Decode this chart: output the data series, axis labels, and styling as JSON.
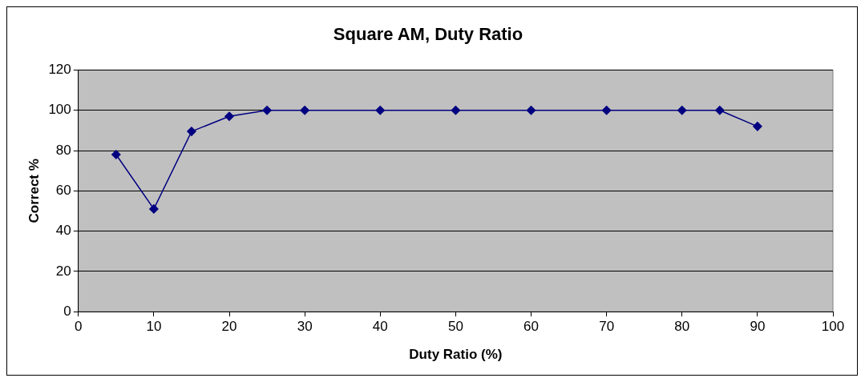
{
  "chart_data": {
    "type": "line",
    "title": "Square AM, Duty Ratio",
    "xlabel": "Duty Ratio (%)",
    "ylabel": "Correct %",
    "x": [
      5,
      10,
      15,
      20,
      25,
      30,
      40,
      50,
      60,
      70,
      80,
      85,
      90
    ],
    "series": [
      {
        "color": "#000080",
        "values": [
          78,
          51,
          89.5,
          97,
          100,
          100,
          100,
          100,
          100,
          100,
          100,
          100,
          92
        ]
      }
    ],
    "xlim": [
      0,
      100
    ],
    "xticks": [
      0,
      10,
      20,
      30,
      40,
      50,
      60,
      70,
      80,
      90,
      100
    ],
    "ylim": [
      0,
      120
    ],
    "yticks": [
      0,
      20,
      40,
      60,
      80,
      100,
      120
    ],
    "grid": "y",
    "legend": false,
    "marker": "diamond",
    "line_style": "solid"
  }
}
